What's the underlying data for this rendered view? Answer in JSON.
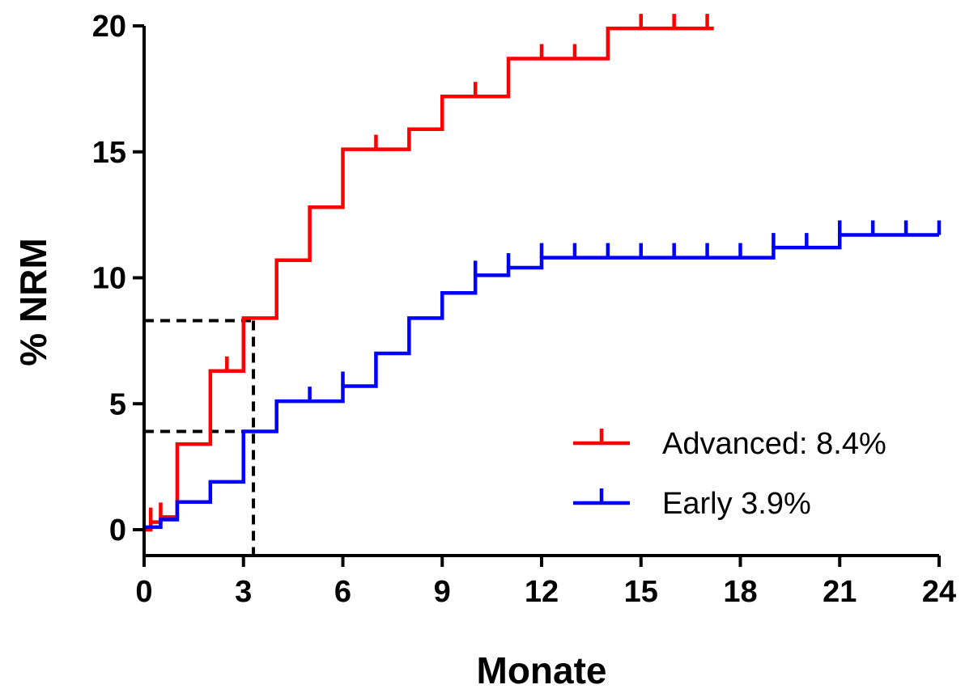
{
  "chart_data": {
    "type": "line",
    "subtype": "step",
    "title": "",
    "xlabel": "Monate",
    "ylabel": "% NRM",
    "xlim": [
      0,
      24
    ],
    "ylim": [
      0,
      20
    ],
    "xticks": [
      0,
      3,
      6,
      9,
      12,
      15,
      18,
      21,
      24
    ],
    "yticks": [
      0,
      5,
      10,
      15,
      20
    ],
    "grid": false,
    "legend_position": "bottom-right",
    "series": [
      {
        "name": "Advanced: 8.4%",
        "color": "#ff0000",
        "steps": [
          [
            0,
            0
          ],
          [
            0.2,
            0.3
          ],
          [
            0.5,
            0.5
          ],
          [
            1,
            3.4
          ],
          [
            2,
            6.3
          ],
          [
            3,
            8.4
          ],
          [
            4,
            10.7
          ],
          [
            5,
            12.8
          ],
          [
            6,
            15.1
          ],
          [
            8,
            15.9
          ],
          [
            9,
            17.2
          ],
          [
            11,
            18.7
          ],
          [
            14,
            19.9
          ]
        ],
        "end_x": 17.2,
        "censor_x": [
          0.2,
          0.5,
          2.5,
          7,
          10,
          12,
          13,
          15,
          16,
          17
        ]
      },
      {
        "name": "Early 3.9%",
        "color": "#0000ff",
        "steps": [
          [
            0,
            0.1
          ],
          [
            0.5,
            0.4
          ],
          [
            1,
            1.1
          ],
          [
            2,
            1.9
          ],
          [
            3,
            3.9
          ],
          [
            4,
            5.1
          ],
          [
            6,
            5.7
          ],
          [
            7,
            7.0
          ],
          [
            8,
            8.4
          ],
          [
            9,
            9.4
          ],
          [
            10,
            10.1
          ],
          [
            11,
            10.4
          ],
          [
            12,
            10.8
          ],
          [
            19,
            11.2
          ],
          [
            21,
            11.7
          ]
        ],
        "end_x": 24,
        "censor_x": [
          5,
          6,
          10,
          11,
          12,
          13,
          14,
          15,
          16,
          17,
          18,
          19,
          20,
          21,
          22,
          23,
          24
        ]
      }
    ],
    "reference_lines": {
      "x": 3.3,
      "y": [
        8.3,
        3.9
      ]
    }
  }
}
